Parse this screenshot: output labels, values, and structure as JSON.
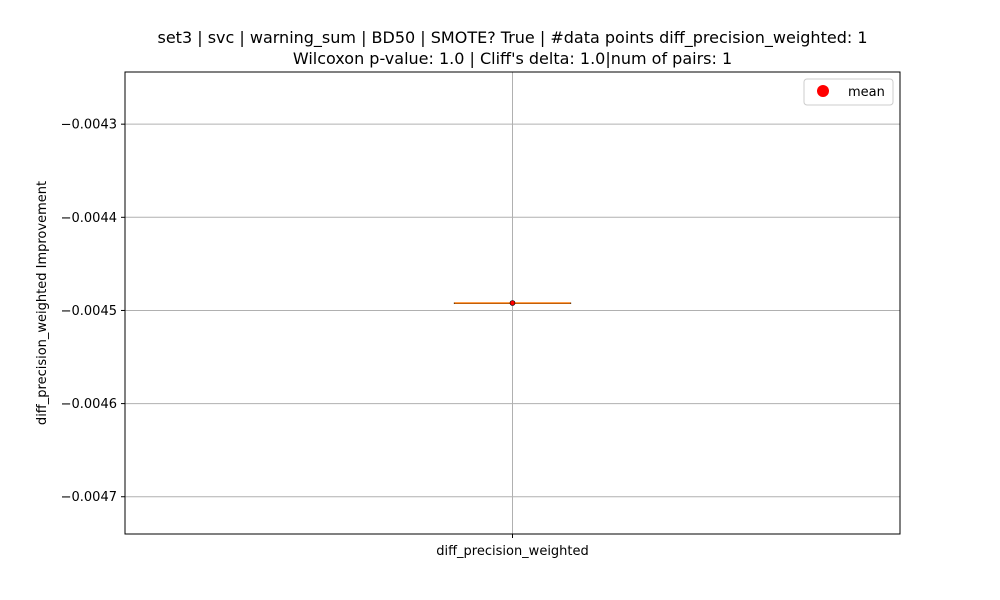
{
  "chart_data": {
    "type": "box",
    "title": "set3 | svc | warning_sum | BD50 | SMOTE? True | #data points diff_precision_weighted: 1",
    "subtitle": "Wilcoxon p-value: 1.0 | Cliff's delta: 1.0|num of pairs: 1",
    "ylabel": "diff_precision_weighted Improvement",
    "xlabel": "",
    "categories": [
      "diff_precision_weighted"
    ],
    "ylim": [
      -0.00474,
      -0.004244
    ],
    "yticks": [
      -0.0043,
      -0.0044,
      -0.0045,
      -0.0046,
      -0.0047
    ],
    "ytick_labels": [
      "−0.0043",
      "−0.0044",
      "−0.0045",
      "−0.0046",
      "−0.0047"
    ],
    "grid": true,
    "series": [
      {
        "category": "diff_precision_weighted",
        "min": -0.004492,
        "q1": -0.004492,
        "median": -0.004492,
        "q3": -0.004492,
        "max": -0.004492,
        "mean": -0.004492
      }
    ],
    "legend": {
      "position": "top-right",
      "entries": [
        {
          "label": "mean",
          "marker": "circle",
          "color": "#ff0000"
        }
      ]
    },
    "colors": {
      "median": "#ff7f0e",
      "mean": "#ff0000",
      "grid": "#b0b0b0",
      "box": "#000000"
    }
  }
}
